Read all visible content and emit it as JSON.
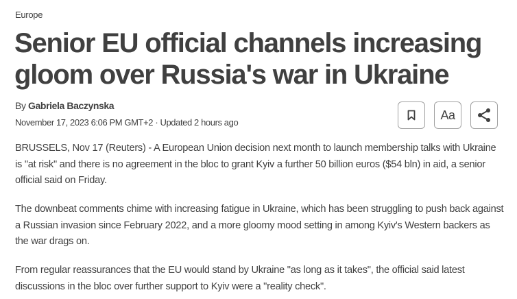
{
  "section": "Europe",
  "headline": "Senior EU official channels increasing gloom over Russia's war in Ukraine",
  "byline": {
    "prefix": "By",
    "author": "Gabriela Baczynska"
  },
  "dateline": "November 17, 2023 6:06 PM GMT+2 · Updated 2 hours ago",
  "actions": {
    "bookmark_icon": "bookmark-icon",
    "font_size_label": "Aa",
    "share_icon": "share-icon"
  },
  "paragraphs": [
    "BRUSSELS, Nov 17 (Reuters) - A European Union decision next month to launch membership talks with Ukraine is \"at risk\" and there is no agreement in the bloc to grant Kyiv a further 50 billion euros ($54 bln) in aid, a senior official said on Friday.",
    "The downbeat comments chime with increasing fatigue in Ukraine, which has been struggling to push back against a Russian invasion since February 2022, and a more gloomy mood setting in among Kyiv's Western backers as the war drags on.",
    "From regular reassurances that the EU would stand by Ukraine \"as long as it takes\", the official said latest discussions in the bloc over further support to Kyiv were a \"reality check\"."
  ]
}
